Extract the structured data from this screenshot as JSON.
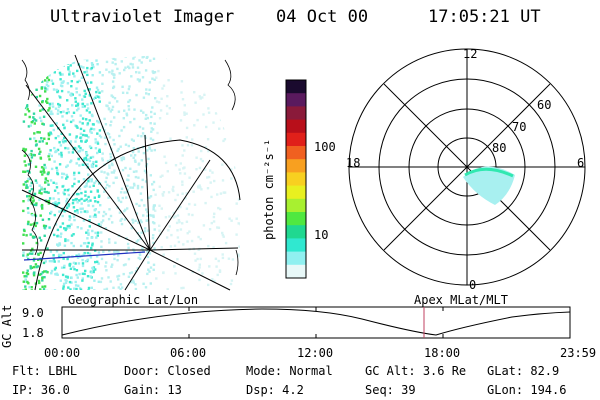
{
  "header": {
    "instrument": "Ultraviolet Imager",
    "date": "04 Oct 00",
    "time": "17:05:21 UT"
  },
  "colorbar": {
    "unit_label": "photon cm⁻²s⁻¹",
    "ticks": [
      "100",
      "10"
    ],
    "colors": [
      "#1a0a2e",
      "#5a1a5e",
      "#8a1a3a",
      "#b80f1a",
      "#e0201a",
      "#f06020",
      "#f8a020",
      "#f8d020",
      "#e8f020",
      "#a8f030",
      "#50e840",
      "#20d890",
      "#30e8d0",
      "#90f0f0",
      "#e8f8f8"
    ]
  },
  "polar_plot": {
    "labels": {
      "top": "12",
      "bottom": "0",
      "left": "18",
      "right": "6"
    },
    "ring_labels": [
      "60",
      "70",
      "80"
    ]
  },
  "timeline": {
    "y_axis_label": "GC Alt",
    "y_ticks": [
      "9.0",
      "1.8"
    ],
    "x_ticks": [
      "00:00",
      "06:00",
      "12:00",
      "18:00",
      "23:59"
    ],
    "left_title": "Geographic Lat/Lon",
    "right_title": "Apex MLat/MLT",
    "marker_color": "#c04060"
  },
  "info": {
    "row1": [
      {
        "label": "Flt:",
        "value": "LBHL"
      },
      {
        "label": "Door:",
        "value": "Closed"
      },
      {
        "label": "Mode:",
        "value": "Normal"
      },
      {
        "label": "GC Alt:",
        "value": "3.6 Re"
      },
      {
        "label": "GLat:",
        "value": "82.9"
      }
    ],
    "row2": [
      {
        "label": "IP:",
        "value": "36.0"
      },
      {
        "label": "Gain:",
        "value": "13"
      },
      {
        "label": "Dsp:",
        "value": "4.2"
      },
      {
        "label": "Seq:",
        "value": "39"
      },
      {
        "label": "GLon:",
        "value": "194.6"
      }
    ]
  }
}
